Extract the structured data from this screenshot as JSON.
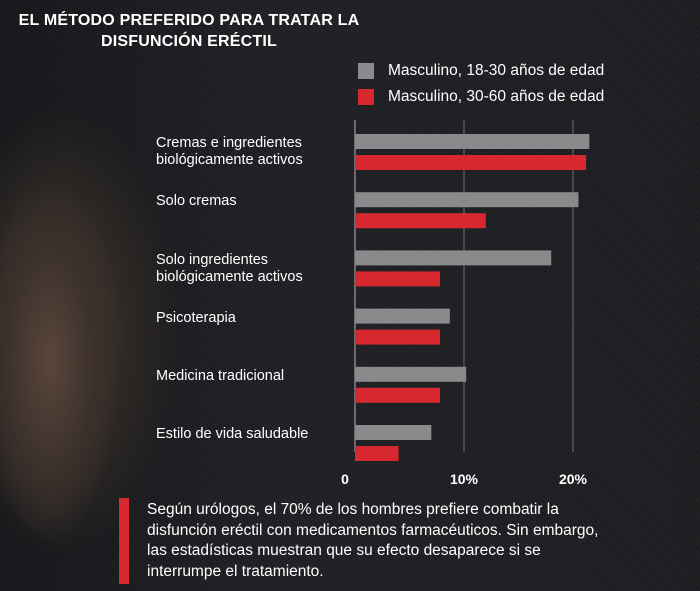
{
  "title": "EL MÉTODO PREFERIDO PARA TRATAR LA DISFUNCIÓN ERÉCTIL",
  "colors": {
    "gray": "#8a8a8c",
    "red": "#d6282e",
    "grid": "#55565a"
  },
  "chart_data": {
    "type": "bar",
    "orientation": "horizontal",
    "categories": [
      "Cremas e ingredientes biológicamente activos",
      "Solo cremas",
      "Solo ingredientes biológicamente activos",
      "Psicoterapia",
      "Medicina tradicional",
      "Estilo de vida saludable"
    ],
    "series": [
      {
        "name": "Masculino, 18-30 años de edad",
        "color": "#8a8a8c",
        "values": [
          21.5,
          20.5,
          18.0,
          8.7,
          10.2,
          7.0
        ]
      },
      {
        "name": "Masculino, 30-60 años de edad",
        "color": "#d6282e",
        "values": [
          21.2,
          12.0,
          7.8,
          7.8,
          7.8,
          4.0
        ]
      }
    ],
    "xticks": [
      "0",
      "10%",
      "20%"
    ],
    "xtick_values": [
      0,
      10,
      20
    ],
    "xlim": [
      0,
      23
    ],
    "grid": true,
    "legend": "top-right"
  },
  "note": "Según urólogos, el 70% de los hombres prefiere combatir la disfunción eréctil con medicamentos farmacéuticos. Sin embargo, las estadísticas muestran que su efecto desaparece si se interrumpe el tratamiento."
}
